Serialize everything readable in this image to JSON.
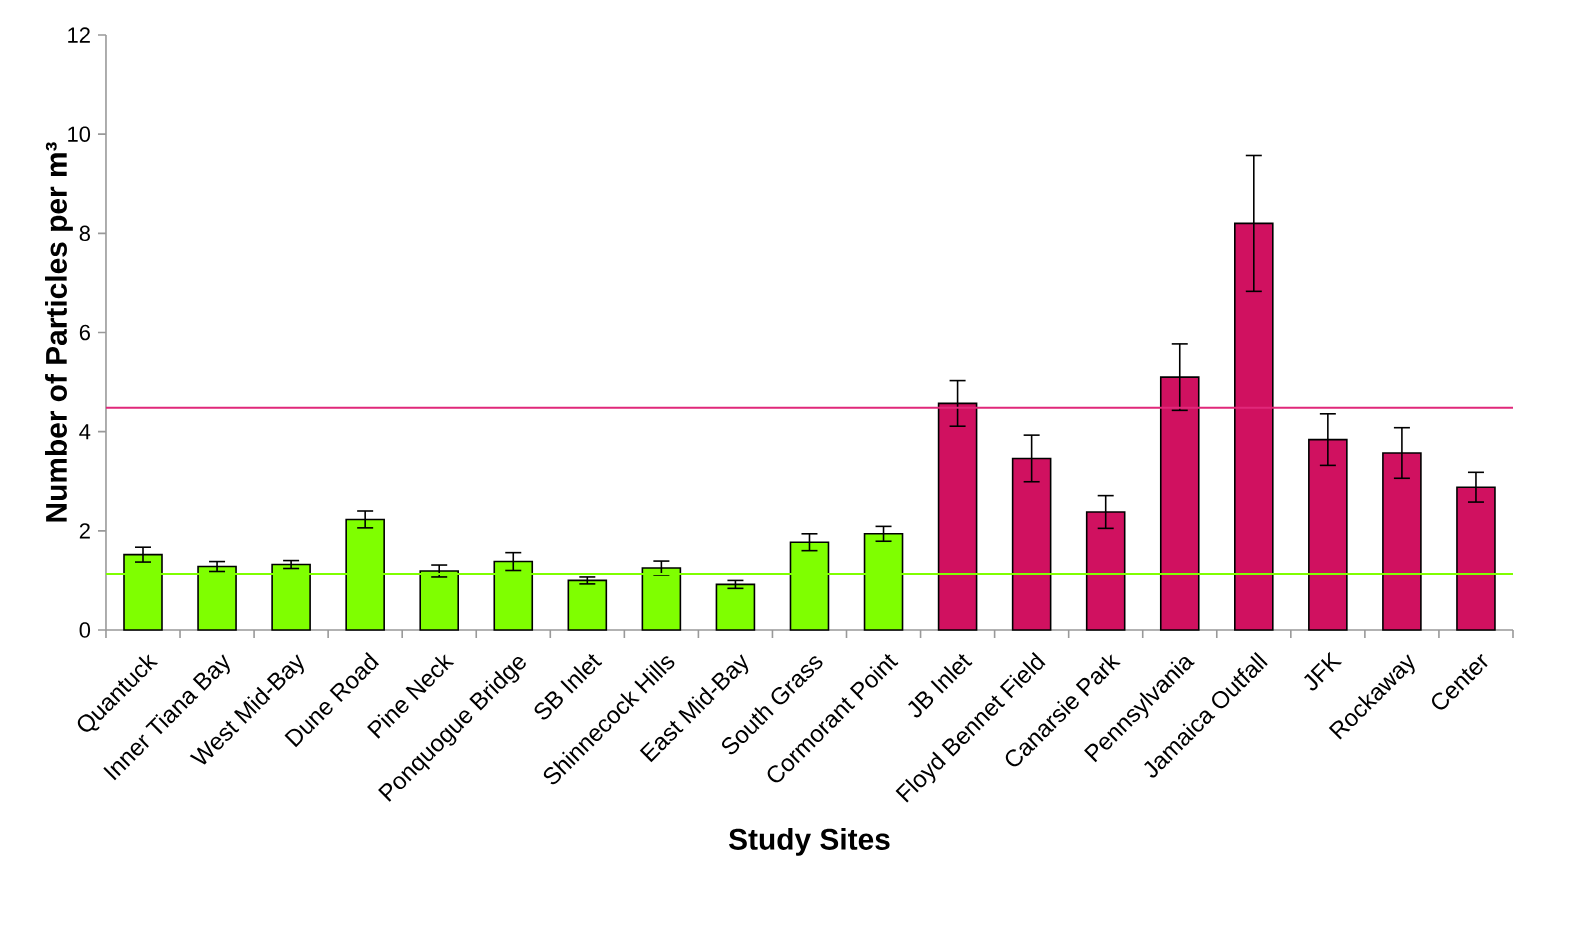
{
  "chart_data": {
    "type": "bar",
    "xlabel": "Study Sites",
    "ylabel": "Number of Particles per m³",
    "categories": [
      "Quantuck",
      "Inner Tiana Bay",
      "West Mid-Bay",
      "Dune Road",
      "Pine Neck",
      "Ponquogue Bridge",
      "SB Inlet",
      "Shinnecock Hills",
      "East Mid-Bay",
      "South Grass",
      "Cormorant Point",
      "JB Inlet",
      "Floyd Bennet Field",
      "Canarsie Park",
      "Pennsylvania",
      "Jamaica Outfall",
      "JFK",
      "Rockaway",
      "Center"
    ],
    "values": [
      1.52,
      1.28,
      1.32,
      2.23,
      1.19,
      1.38,
      1.0,
      1.25,
      0.92,
      1.77,
      1.94,
      4.57,
      3.46,
      2.38,
      5.1,
      8.2,
      3.84,
      3.57,
      2.88
    ],
    "errors": [
      0.15,
      0.1,
      0.08,
      0.17,
      0.12,
      0.18,
      0.07,
      0.14,
      0.08,
      0.17,
      0.15,
      0.46,
      0.47,
      0.33,
      0.67,
      1.37,
      0.52,
      0.51,
      0.3
    ],
    "colors": [
      "#7fff00",
      "#7fff00",
      "#7fff00",
      "#7fff00",
      "#7fff00",
      "#7fff00",
      "#7fff00",
      "#7fff00",
      "#7fff00",
      "#7fff00",
      "#7fff00",
      "#d01160",
      "#d01160",
      "#d01160",
      "#d01160",
      "#d01160",
      "#d01160",
      "#d01160",
      "#d01160"
    ],
    "ylim": [
      0,
      12
    ],
    "yticks": [
      0,
      2,
      4,
      6,
      8,
      10,
      12
    ],
    "ref_lines": [
      {
        "axis": "y",
        "value": 4.48,
        "color": "#e0287a"
      },
      {
        "axis": "y",
        "value": 1.13,
        "color": "#7fff00"
      }
    ],
    "grid": false
  }
}
